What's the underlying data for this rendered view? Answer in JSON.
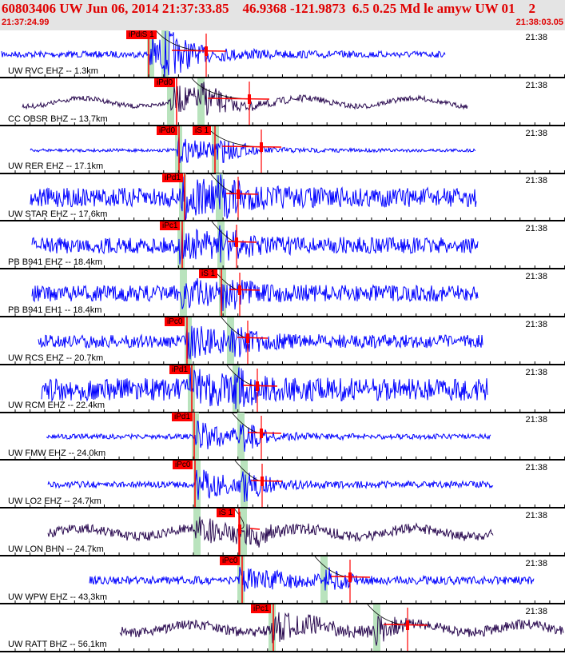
{
  "header": {
    "title": "60803406 UW Jun 06, 2014 21:37:33.85    46.9368 -121.9873  6.5 0.25 Md le amyw UW 01    2",
    "start_time": "21:37:24.99",
    "end_time": "21:38:03.05"
  },
  "colors": {
    "header_text": "#e00000",
    "trace_short_period": "#0000ff",
    "trace_broadband": "#2a0a50",
    "pick": "#ff0000",
    "window": "#b9e3bd"
  },
  "traces": [
    {
      "label": "UW RVC EHZ -- 1.3km",
      "minute": "21:38",
      "picks": [
        "iPdiS 1"
      ]
    },
    {
      "label": "CC OBSR BHZ -- 13.7km",
      "minute": "21:38",
      "picks": [
        "iPd0"
      ]
    },
    {
      "label": "UW RER EHZ -- 17.1km",
      "minute": "21:38",
      "picks": [
        "iPd0",
        "iS 1"
      ]
    },
    {
      "label": "UW STAR EHZ -- 17.6km",
      "minute": "21:38",
      "picks": [
        "iPd1"
      ]
    },
    {
      "label": "PB B941 EHZ -- 18.4km",
      "minute": "21:38",
      "picks": [
        "iPc1"
      ]
    },
    {
      "label": "PB B941 EH1 -- 18.4km",
      "minute": "21:38",
      "picks": [
        "iS 1"
      ]
    },
    {
      "label": "UW RCS EHZ -- 20.7km",
      "minute": "21:38",
      "picks": [
        "iPc0"
      ]
    },
    {
      "label": "UW RCM EHZ -- 22.4km",
      "minute": "21:38",
      "picks": [
        "iPd1"
      ]
    },
    {
      "label": "UW FMW EHZ -- 24.0km",
      "minute": "21:38",
      "picks": [
        "iPd1"
      ]
    },
    {
      "label": "UW LO2 EHZ -- 24.7km",
      "minute": "21:38",
      "picks": [
        "iPc0"
      ]
    },
    {
      "label": "UW LON BHN -- 24.7km",
      "minute": "21:38",
      "picks": [
        "iS 1"
      ]
    },
    {
      "label": "UW WPW EHZ -- 43.3km",
      "minute": "21:38",
      "picks": [
        "iPc0"
      ]
    },
    {
      "label": "UW RATT BHZ -- 56.1km",
      "minute": "21:38",
      "picks": [
        "iPc1"
      ]
    }
  ]
}
